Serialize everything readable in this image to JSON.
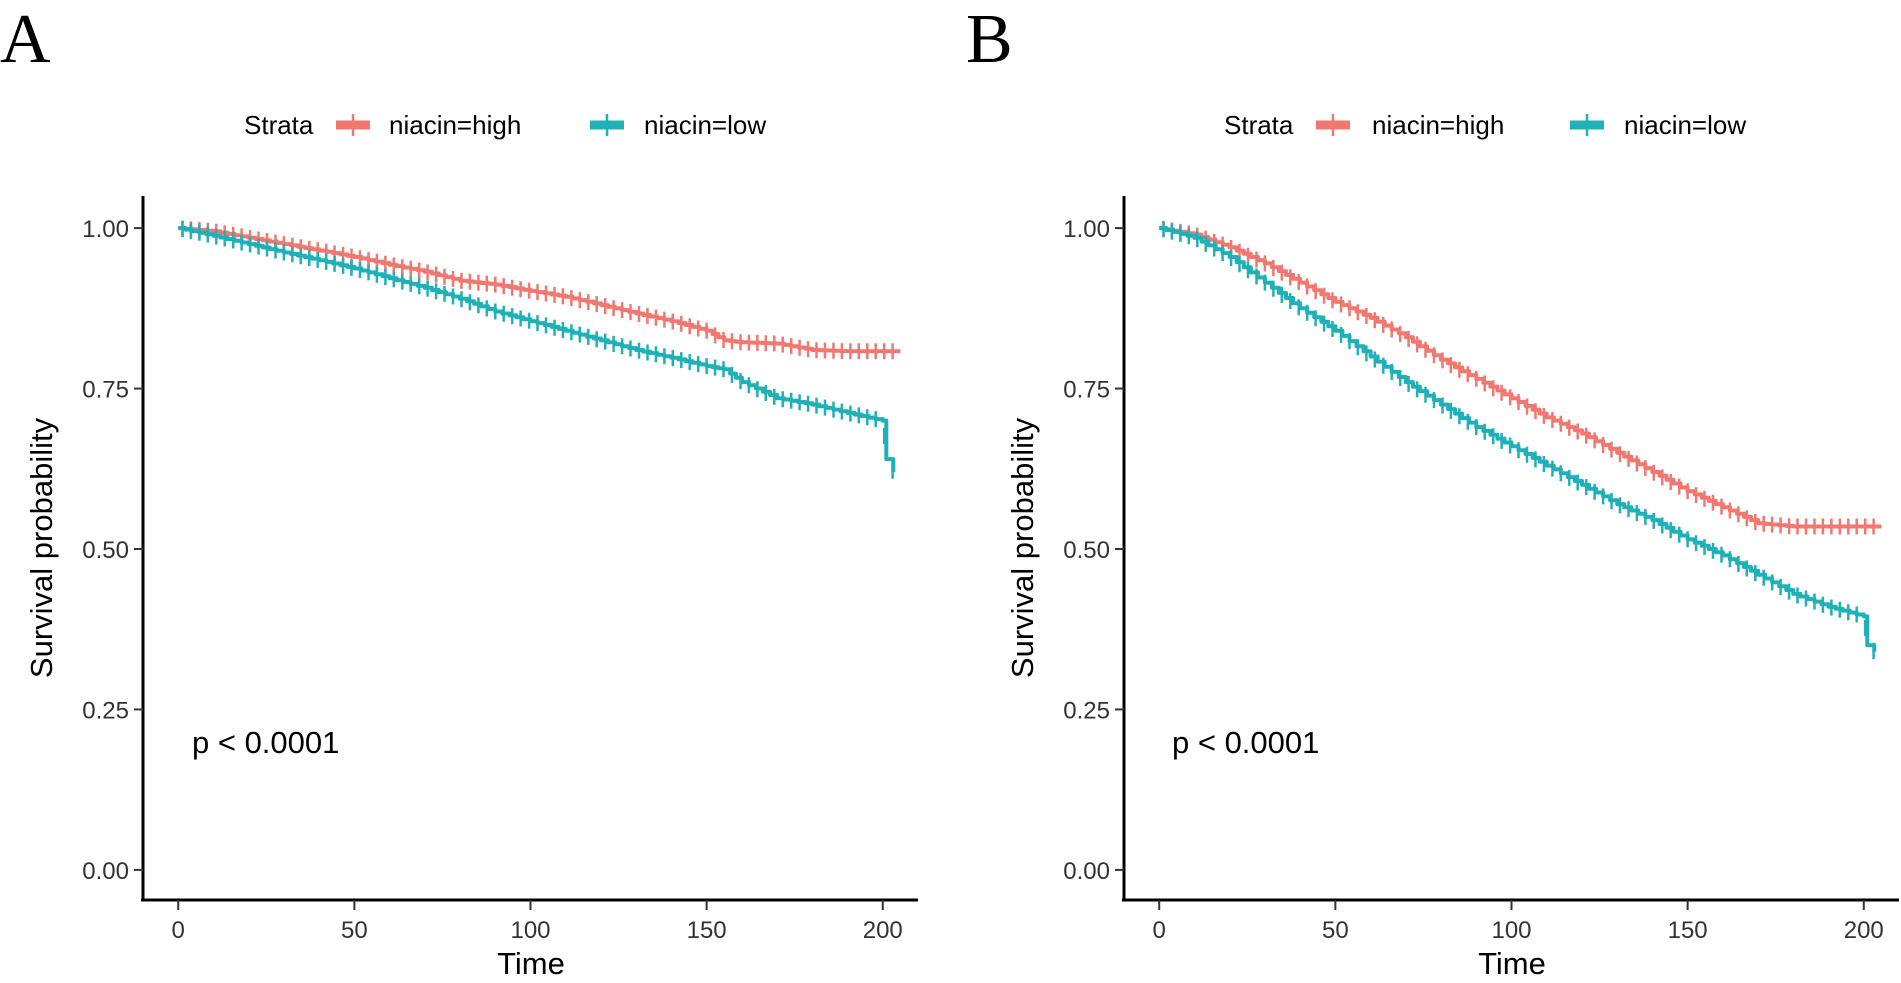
{
  "chart_data": [
    {
      "type": "line",
      "subtype": "kaplan-meier",
      "panel_label": "A",
      "legend_title": "Strata",
      "xlabel": "Time",
      "ylabel": "Survival probability",
      "xlim": [
        0,
        210
      ],
      "ylim": [
        0,
        1.05
      ],
      "xticks": [
        0,
        50,
        100,
        150,
        200
      ],
      "yticks": [
        0,
        0.25,
        0.5,
        0.75,
        1.0
      ],
      "ytick_labels": [
        "0.00",
        "0.25",
        "0.50",
        "0.75",
        "1.00"
      ],
      "xtick_labels": [
        "0",
        "50",
        "100",
        "150",
        "200"
      ],
      "annotation": "p < 0.0001",
      "series": [
        {
          "name": "niacin=high",
          "color": "#F07870",
          "x": [
            0,
            10,
            20,
            30,
            40,
            50,
            60,
            70,
            80,
            90,
            100,
            110,
            120,
            130,
            140,
            150,
            155,
            160,
            170,
            180,
            190,
            200,
            205
          ],
          "values": [
            1.0,
            0.995,
            0.985,
            0.975,
            0.965,
            0.955,
            0.943,
            0.932,
            0.918,
            0.912,
            0.902,
            0.893,
            0.88,
            0.867,
            0.855,
            0.84,
            0.825,
            0.822,
            0.82,
            0.81,
            0.808,
            0.808,
            0.808
          ]
        },
        {
          "name": "niacin=low",
          "color": "#1FB0B8",
          "x": [
            0,
            10,
            20,
            30,
            40,
            50,
            60,
            70,
            80,
            90,
            100,
            110,
            120,
            130,
            140,
            150,
            155,
            160,
            170,
            180,
            190,
            200,
            201,
            203
          ],
          "values": [
            1.0,
            0.988,
            0.975,
            0.962,
            0.95,
            0.937,
            0.922,
            0.907,
            0.89,
            0.87,
            0.855,
            0.84,
            0.825,
            0.81,
            0.798,
            0.785,
            0.78,
            0.76,
            0.735,
            0.725,
            0.712,
            0.7,
            0.64,
            0.62
          ]
        }
      ]
    },
    {
      "type": "line",
      "subtype": "kaplan-meier",
      "panel_label": "B",
      "legend_title": "Strata",
      "xlabel": "Time",
      "ylabel": "Survival probability",
      "xlim": [
        0,
        210
      ],
      "ylim": [
        0,
        1.05
      ],
      "xticks": [
        0,
        50,
        100,
        150,
        200
      ],
      "yticks": [
        0,
        0.25,
        0.5,
        0.75,
        1.0
      ],
      "ytick_labels": [
        "0.00",
        "0.25",
        "0.50",
        "0.75",
        "1.00"
      ],
      "xtick_labels": [
        "0",
        "50",
        "100",
        "150",
        "200"
      ],
      "annotation": "p < 0.0001",
      "series": [
        {
          "name": "niacin=high",
          "color": "#F07870",
          "x": [
            0,
            10,
            20,
            30,
            40,
            50,
            60,
            70,
            80,
            90,
            100,
            110,
            120,
            130,
            140,
            150,
            160,
            170,
            180,
            190,
            200,
            205
          ],
          "values": [
            1.0,
            0.99,
            0.97,
            0.945,
            0.915,
            0.885,
            0.86,
            0.83,
            0.795,
            0.765,
            0.735,
            0.705,
            0.68,
            0.65,
            0.62,
            0.59,
            0.565,
            0.54,
            0.535,
            0.535,
            0.535,
            0.535
          ]
        },
        {
          "name": "niacin=low",
          "color": "#1FB0B8",
          "x": [
            0,
            10,
            20,
            30,
            40,
            50,
            60,
            70,
            80,
            90,
            100,
            110,
            120,
            130,
            140,
            150,
            160,
            170,
            180,
            190,
            200,
            201,
            203
          ],
          "values": [
            1.0,
            0.985,
            0.955,
            0.915,
            0.875,
            0.84,
            0.8,
            0.76,
            0.725,
            0.69,
            0.66,
            0.63,
            0.6,
            0.57,
            0.545,
            0.515,
            0.49,
            0.46,
            0.43,
            0.41,
            0.395,
            0.35,
            0.34
          ]
        }
      ]
    }
  ]
}
